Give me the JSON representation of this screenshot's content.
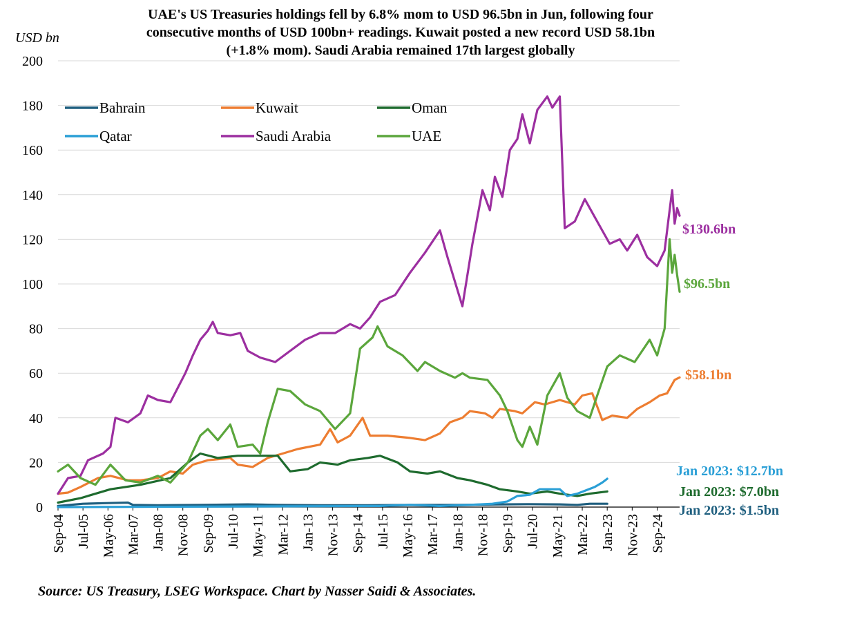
{
  "chart_data": {
    "type": "line",
    "title_lines": [
      "UAE's US Treasuries holdings fell by 6.8% mom to USD 96.5bn in Jun, following four",
      "consecutive months of USD 100bn+ readings. Kuwait posted a new record USD 58.1bn",
      "(+1.8% mom). Saudi Arabia remained 17th largest globally"
    ],
    "unit": "USD bn",
    "source": "Source: US Treasury, LSEG Workspace. Chart by Nasser Saidi & Associates.",
    "ylim": [
      0,
      200
    ],
    "y_ticks": [
      "0",
      "20",
      "40",
      "60",
      "80",
      "100",
      "120",
      "140",
      "160",
      "180",
      "200"
    ],
    "x_range": [
      "2004-09",
      "2025-06"
    ],
    "x_ticks": [
      "Sep-04",
      "Jul-05",
      "May-06",
      "Mar-07",
      "Jan-08",
      "Nov-08",
      "Sep-09",
      "Jul-10",
      "May-11",
      "Mar-12",
      "Jan-13",
      "Nov-13",
      "Sep-14",
      "Jul-15",
      "May-16",
      "Mar-17",
      "Jan-18",
      "Nov-18",
      "Sep-19",
      "Jul-20",
      "May-21",
      "Mar-22",
      "Jan-23",
      "Nov-23",
      "Sep-24"
    ],
    "grid": "horizontal",
    "legend_position": "top-left",
    "series": [
      {
        "name": "Bahrain",
        "color": "#1f5f7f",
        "points": [
          [
            "2004-09",
            0.5
          ],
          [
            "2005-07",
            1.5
          ],
          [
            "2006-05",
            1.8
          ],
          [
            "2007-01",
            2.0
          ],
          [
            "2007-03",
            1.0
          ],
          [
            "2008-01",
            0.8
          ],
          [
            "2009-06",
            1.0
          ],
          [
            "2011-01",
            1.2
          ],
          [
            "2012-01",
            1.0
          ],
          [
            "2013-06",
            0.8
          ],
          [
            "2015-01",
            0.8
          ],
          [
            "2016-06",
            1.0
          ],
          [
            "2018-01",
            1.0
          ],
          [
            "2019-06",
            1.2
          ],
          [
            "2020-06",
            1.3
          ],
          [
            "2021-06",
            1.2
          ],
          [
            "2022-01",
            1.0
          ],
          [
            "2022-06",
            1.5
          ],
          [
            "2023-01",
            1.5
          ]
        ]
      },
      {
        "name": "Kuwait",
        "color": "#ed7d31",
        "points": [
          [
            "2004-09",
            6
          ],
          [
            "2005-01",
            6.5
          ],
          [
            "2005-06",
            9
          ],
          [
            "2006-01",
            13
          ],
          [
            "2006-06",
            14
          ],
          [
            "2007-01",
            12
          ],
          [
            "2007-06",
            12
          ],
          [
            "2008-01",
            13
          ],
          [
            "2008-06",
            16
          ],
          [
            "2008-11",
            15
          ],
          [
            "2009-03",
            19
          ],
          [
            "2009-09",
            21
          ],
          [
            "2010-06",
            22
          ],
          [
            "2010-09",
            19
          ],
          [
            "2011-03",
            18
          ],
          [
            "2011-09",
            22
          ],
          [
            "2012-03",
            24
          ],
          [
            "2012-09",
            26
          ],
          [
            "2013-06",
            28
          ],
          [
            "2013-10",
            35
          ],
          [
            "2014-01",
            29
          ],
          [
            "2014-06",
            32
          ],
          [
            "2014-11",
            40
          ],
          [
            "2015-02",
            32
          ],
          [
            "2015-09",
            32
          ],
          [
            "2016-06",
            31
          ],
          [
            "2016-12",
            30
          ],
          [
            "2017-06",
            33
          ],
          [
            "2017-10",
            38
          ],
          [
            "2018-03",
            40
          ],
          [
            "2018-06",
            43
          ],
          [
            "2018-12",
            42
          ],
          [
            "2019-03",
            40
          ],
          [
            "2019-06",
            44
          ],
          [
            "2019-12",
            43
          ],
          [
            "2020-03",
            42
          ],
          [
            "2020-08",
            47
          ],
          [
            "2020-12",
            46
          ],
          [
            "2021-06",
            48
          ],
          [
            "2021-12",
            46
          ],
          [
            "2022-03",
            50
          ],
          [
            "2022-07",
            51
          ],
          [
            "2022-11",
            39
          ],
          [
            "2023-03",
            41
          ],
          [
            "2023-09",
            40
          ],
          [
            "2024-01",
            44
          ],
          [
            "2024-06",
            47
          ],
          [
            "2024-10",
            50
          ],
          [
            "2025-01",
            51
          ],
          [
            "2025-04",
            57
          ],
          [
            "2025-06",
            58.1
          ]
        ]
      },
      {
        "name": "Oman",
        "color": "#1e6b2e",
        "points": [
          [
            "2004-09",
            2
          ],
          [
            "2005-06",
            4
          ],
          [
            "2006-06",
            8
          ],
          [
            "2007-06",
            10
          ],
          [
            "2008-06",
            13
          ],
          [
            "2009-01",
            20
          ],
          [
            "2009-06",
            24
          ],
          [
            "2010-01",
            22
          ],
          [
            "2010-09",
            23
          ],
          [
            "2011-06",
            23
          ],
          [
            "2012-01",
            23
          ],
          [
            "2012-06",
            16
          ],
          [
            "2013-01",
            17
          ],
          [
            "2013-06",
            20
          ],
          [
            "2014-01",
            19
          ],
          [
            "2014-06",
            21
          ],
          [
            "2015-01",
            22
          ],
          [
            "2015-06",
            23
          ],
          [
            "2016-01",
            20
          ],
          [
            "2016-06",
            16
          ],
          [
            "2017-01",
            15
          ],
          [
            "2017-06",
            16
          ],
          [
            "2018-01",
            13
          ],
          [
            "2018-06",
            12
          ],
          [
            "2019-01",
            10
          ],
          [
            "2019-06",
            8
          ],
          [
            "2020-01",
            7
          ],
          [
            "2020-06",
            6
          ],
          [
            "2021-01",
            7
          ],
          [
            "2021-06",
            6
          ],
          [
            "2022-01",
            5
          ],
          [
            "2022-06",
            6
          ],
          [
            "2023-01",
            7.0
          ]
        ]
      },
      {
        "name": "Qatar",
        "color": "#2a9fd6",
        "points": [
          [
            "2004-09",
            0
          ],
          [
            "2015-06",
            0.5
          ],
          [
            "2016-06",
            1.0
          ],
          [
            "2017-06",
            0.5
          ],
          [
            "2018-06",
            1.0
          ],
          [
            "2019-03",
            1.5
          ],
          [
            "2019-09",
            2.5
          ],
          [
            "2020-01",
            5
          ],
          [
            "2020-06",
            5.5
          ],
          [
            "2020-10",
            8
          ],
          [
            "2021-06",
            8
          ],
          [
            "2021-09",
            5
          ],
          [
            "2022-01",
            6
          ],
          [
            "2022-08",
            9
          ],
          [
            "2022-11",
            11
          ],
          [
            "2023-01",
            12.7
          ]
        ]
      },
      {
        "name": "Saudi Arabia",
        "color": "#9c2fa0",
        "points": [
          [
            "2004-09",
            6
          ],
          [
            "2005-01",
            13
          ],
          [
            "2005-06",
            14
          ],
          [
            "2005-09",
            21
          ],
          [
            "2006-03",
            24
          ],
          [
            "2006-06",
            27
          ],
          [
            "2006-08",
            40
          ],
          [
            "2007-01",
            38
          ],
          [
            "2007-06",
            42
          ],
          [
            "2007-09",
            50
          ],
          [
            "2008-01",
            48
          ],
          [
            "2008-06",
            47
          ],
          [
            "2008-12",
            60
          ],
          [
            "2009-03",
            68
          ],
          [
            "2009-06",
            75
          ],
          [
            "2009-09",
            79
          ],
          [
            "2009-11",
            83
          ],
          [
            "2010-01",
            78
          ],
          [
            "2010-06",
            77
          ],
          [
            "2010-10",
            78
          ],
          [
            "2011-01",
            70
          ],
          [
            "2011-06",
            67
          ],
          [
            "2011-12",
            65
          ],
          [
            "2012-06",
            70
          ],
          [
            "2012-12",
            75
          ],
          [
            "2013-06",
            78
          ],
          [
            "2013-12",
            78
          ],
          [
            "2014-06",
            82
          ],
          [
            "2014-10",
            80
          ],
          [
            "2015-02",
            85
          ],
          [
            "2015-06",
            92
          ],
          [
            "2015-12",
            95
          ],
          [
            "2016-06",
            105
          ],
          [
            "2016-12",
            114
          ],
          [
            "2017-06",
            124
          ],
          [
            "2017-09",
            112
          ],
          [
            "2018-03",
            90
          ],
          [
            "2018-07",
            118
          ],
          [
            "2018-11",
            142
          ],
          [
            "2019-02",
            133
          ],
          [
            "2019-04",
            148
          ],
          [
            "2019-07",
            139
          ],
          [
            "2019-10",
            160
          ],
          [
            "2020-01",
            165
          ],
          [
            "2020-03",
            176
          ],
          [
            "2020-06",
            163
          ],
          [
            "2020-09",
            178
          ],
          [
            "2021-01",
            184
          ],
          [
            "2021-03",
            179
          ],
          [
            "2021-06",
            184
          ],
          [
            "2021-08",
            125
          ],
          [
            "2021-12",
            128
          ],
          [
            "2022-04",
            138
          ],
          [
            "2022-09",
            128
          ],
          [
            "2023-02",
            118
          ],
          [
            "2023-06",
            120
          ],
          [
            "2023-09",
            115
          ],
          [
            "2024-01",
            122
          ],
          [
            "2024-05",
            112
          ],
          [
            "2024-09",
            108
          ],
          [
            "2024-12",
            115
          ],
          [
            "2025-02",
            133
          ],
          [
            "2025-03",
            142
          ],
          [
            "2025-04",
            127
          ],
          [
            "2025-05",
            134
          ],
          [
            "2025-06",
            130.6
          ]
        ]
      },
      {
        "name": "UAE",
        "color": "#5ba63c",
        "points": [
          [
            "2004-09",
            16
          ],
          [
            "2005-01",
            19
          ],
          [
            "2005-06",
            13
          ],
          [
            "2005-12",
            10
          ],
          [
            "2006-06",
            19
          ],
          [
            "2006-12",
            12
          ],
          [
            "2007-06",
            11
          ],
          [
            "2008-01",
            14
          ],
          [
            "2008-06",
            11
          ],
          [
            "2009-01",
            20
          ],
          [
            "2009-06",
            32
          ],
          [
            "2009-09",
            35
          ],
          [
            "2010-01",
            30
          ],
          [
            "2010-06",
            37
          ],
          [
            "2010-09",
            27
          ],
          [
            "2011-03",
            28
          ],
          [
            "2011-06",
            24
          ],
          [
            "2011-09",
            38
          ],
          [
            "2012-01",
            53
          ],
          [
            "2012-06",
            52
          ],
          [
            "2012-12",
            46
          ],
          [
            "2013-06",
            43
          ],
          [
            "2013-12",
            35
          ],
          [
            "2014-06",
            42
          ],
          [
            "2014-10",
            71
          ],
          [
            "2015-03",
            76
          ],
          [
            "2015-05",
            81
          ],
          [
            "2015-09",
            72
          ],
          [
            "2016-03",
            68
          ],
          [
            "2016-09",
            61
          ],
          [
            "2016-12",
            65
          ],
          [
            "2017-06",
            61
          ],
          [
            "2017-12",
            58
          ],
          [
            "2018-03",
            60
          ],
          [
            "2018-06",
            58
          ],
          [
            "2019-01",
            57
          ],
          [
            "2019-06",
            50
          ],
          [
            "2019-09",
            43
          ],
          [
            "2020-01",
            30
          ],
          [
            "2020-03",
            27
          ],
          [
            "2020-06",
            36
          ],
          [
            "2020-09",
            28
          ],
          [
            "2021-01",
            50
          ],
          [
            "2021-06",
            60
          ],
          [
            "2021-09",
            49
          ],
          [
            "2022-01",
            43
          ],
          [
            "2022-06",
            40
          ],
          [
            "2022-09",
            50
          ],
          [
            "2023-01",
            63
          ],
          [
            "2023-06",
            68
          ],
          [
            "2023-12",
            65
          ],
          [
            "2024-03",
            70
          ],
          [
            "2024-06",
            75
          ],
          [
            "2024-09",
            68
          ],
          [
            "2024-12",
            80
          ],
          [
            "2025-02",
            120
          ],
          [
            "2025-03",
            105
          ],
          [
            "2025-04",
            113
          ],
          [
            "2025-05",
            104
          ],
          [
            "2025-06",
            96.5
          ]
        ]
      }
    ],
    "annotations": [
      {
        "text": "$130.6bn",
        "series": "Saudi Arabia",
        "value": 130.6
      },
      {
        "text": "$96.5bn",
        "series": "UAE",
        "value": 96.5
      },
      {
        "text": "$58.1bn",
        "series": "Kuwait",
        "value": 58.1
      },
      {
        "text": "Jan 2023: $12.7bn",
        "series": "Qatar",
        "value": 12.7
      },
      {
        "text": "Jan 2023: $7.0bn",
        "series": "Oman",
        "value": 7.0
      },
      {
        "text": "Jan 2023: $1.5bn",
        "series": "Bahrain",
        "value": 1.5
      }
    ]
  }
}
